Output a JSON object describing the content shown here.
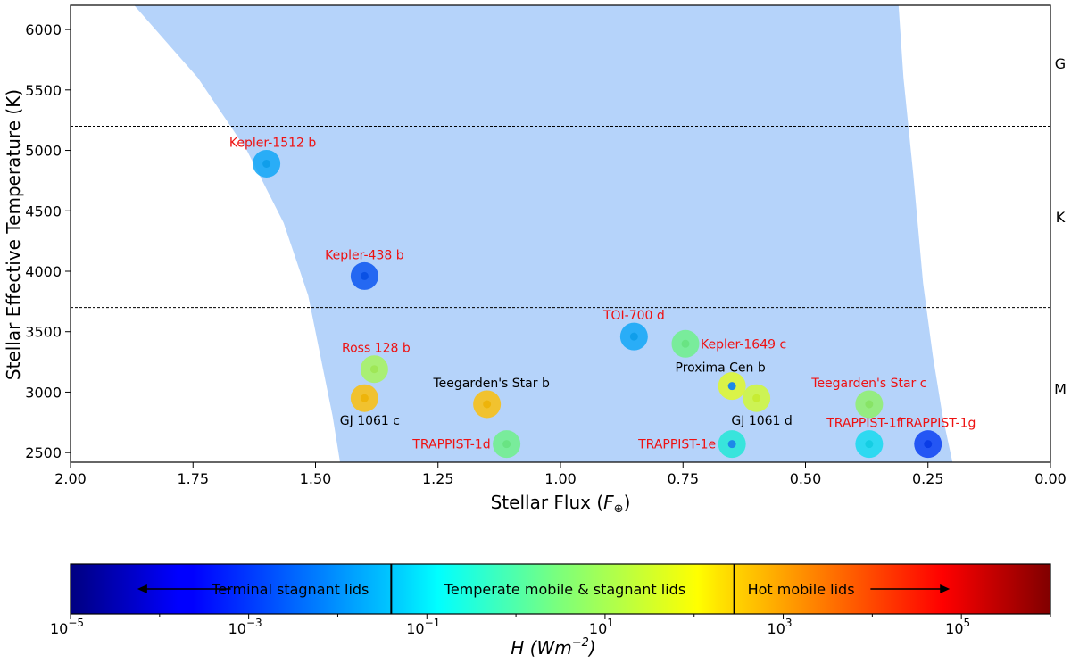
{
  "chart_data": {
    "type": "scatter",
    "xlabel": "Stellar Flux (",
    "xlabel_sym": "F",
    "xlabel_sub": "⊕",
    "xlabel_end": ")",
    "ylabel": "Stellar Effective Temperature (K)",
    "xlim": [
      2.0,
      0.0
    ],
    "ylim": [
      2420,
      6200
    ],
    "x_ticks": [
      "2.00",
      "1.75",
      "1.50",
      "1.25",
      "1.00",
      "0.75",
      "0.50",
      "0.25",
      "0.00"
    ],
    "x_tick_values": [
      2.0,
      1.75,
      1.5,
      1.25,
      1.0,
      0.75,
      0.5,
      0.25,
      0.0
    ],
    "y_ticks": [
      "2500",
      "3000",
      "3500",
      "4000",
      "4500",
      "5000",
      "5500",
      "6000"
    ],
    "y_tick_values": [
      2500,
      3000,
      3500,
      4000,
      4500,
      5000,
      5500,
      6000
    ],
    "spectral_boundaries": [
      5200,
      3700
    ],
    "spectral_labels": [
      {
        "label": "G",
        "y": 5720
      },
      {
        "label": "K",
        "y": 4450
      },
      {
        "label": "M",
        "y": 3030
      }
    ],
    "habitable_zone": {
      "color": "#b5d3fa",
      "inner_edge": [
        [
          1.87,
          6200
        ],
        [
          1.74,
          5600
        ],
        [
          1.64,
          5000
        ],
        [
          1.565,
          4400
        ],
        [
          1.515,
          3800
        ],
        [
          1.485,
          3200
        ],
        [
          1.465,
          2800
        ],
        [
          1.45,
          2420
        ]
      ],
      "outer_edge": [
        [
          0.2,
          2420
        ],
        [
          0.22,
          2800
        ],
        [
          0.24,
          3300
        ],
        [
          0.26,
          3900
        ],
        [
          0.28,
          4800
        ],
        [
          0.3,
          5600
        ],
        [
          0.31,
          6200
        ]
      ]
    },
    "planets": [
      {
        "name": "Kepler-1512 b",
        "x": 1.6,
        "y": 4890,
        "color": "#11a6f6",
        "label_color": "red"
      },
      {
        "name": "Kepler-438 b",
        "x": 1.4,
        "y": 3960,
        "color": "#0a55f0",
        "label_color": "red"
      },
      {
        "name": "Ross 128 b",
        "x": 1.38,
        "y": 3190,
        "color": "#a7f35c",
        "label_color": "red"
      },
      {
        "name": "GJ 1061 c",
        "x": 1.4,
        "y": 2950,
        "color": "#fbbe0b",
        "label_color": "black"
      },
      {
        "name": "Teegarden's Star b",
        "x": 1.15,
        "y": 2900,
        "color": "#fbbe0b",
        "label_color": "black"
      },
      {
        "name": "TRAPPIST-1d",
        "x": 1.11,
        "y": 2570,
        "color": "#6ef08a",
        "label_color": "red"
      },
      {
        "name": "TOI-700 d",
        "x": 0.85,
        "y": 3460,
        "color": "#11a6f6",
        "label_color": "red"
      },
      {
        "name": "Kepler-1649 c",
        "x": 0.745,
        "y": 3400,
        "color": "#6ef08a",
        "label_color": "red"
      },
      {
        "name": "Proxima Cen b",
        "x": 0.65,
        "y": 3050,
        "color": "#e1f828",
        "label_color": "black"
      },
      {
        "name": "GJ 1061 d",
        "x": 0.6,
        "y": 2950,
        "color": "#d1f836",
        "label_color": "black"
      },
      {
        "name": "TRAPPIST-1e",
        "x": 0.65,
        "y": 2570,
        "color": "#22e6d6",
        "label_color": "red"
      },
      {
        "name": "Teegarden's Star c",
        "x": 0.37,
        "y": 2900,
        "color": "#8ff06b",
        "label_color": "red"
      },
      {
        "name": "TRAPPIST-1f",
        "x": 0.37,
        "y": 2570,
        "color": "#16d9ef",
        "label_color": "red"
      },
      {
        "name": "TRAPPIST-1g",
        "x": 0.25,
        "y": 2570,
        "color": "#0a3ff2",
        "label_color": "red"
      }
    ],
    "colorbar": {
      "cmap": "jet",
      "scale": "log",
      "range": [
        -5,
        6
      ],
      "tick_exponents": [
        "-5",
        "-3",
        "-1",
        "1",
        "3",
        "5"
      ],
      "tick_values": [
        -5,
        -3,
        -1,
        1,
        3,
        5
      ],
      "label_prefix": "H (Wm",
      "label_exp": "−2",
      "label_suffix": ")",
      "dividers": [
        -1.4,
        2.45
      ],
      "regions": [
        {
          "label": "Terminal stagnant lids",
          "arrow": "left"
        },
        {
          "label": "Temperate mobile & stagnant lids",
          "arrow": "none"
        },
        {
          "label": "Hot mobile lids",
          "arrow": "right"
        }
      ]
    }
  }
}
